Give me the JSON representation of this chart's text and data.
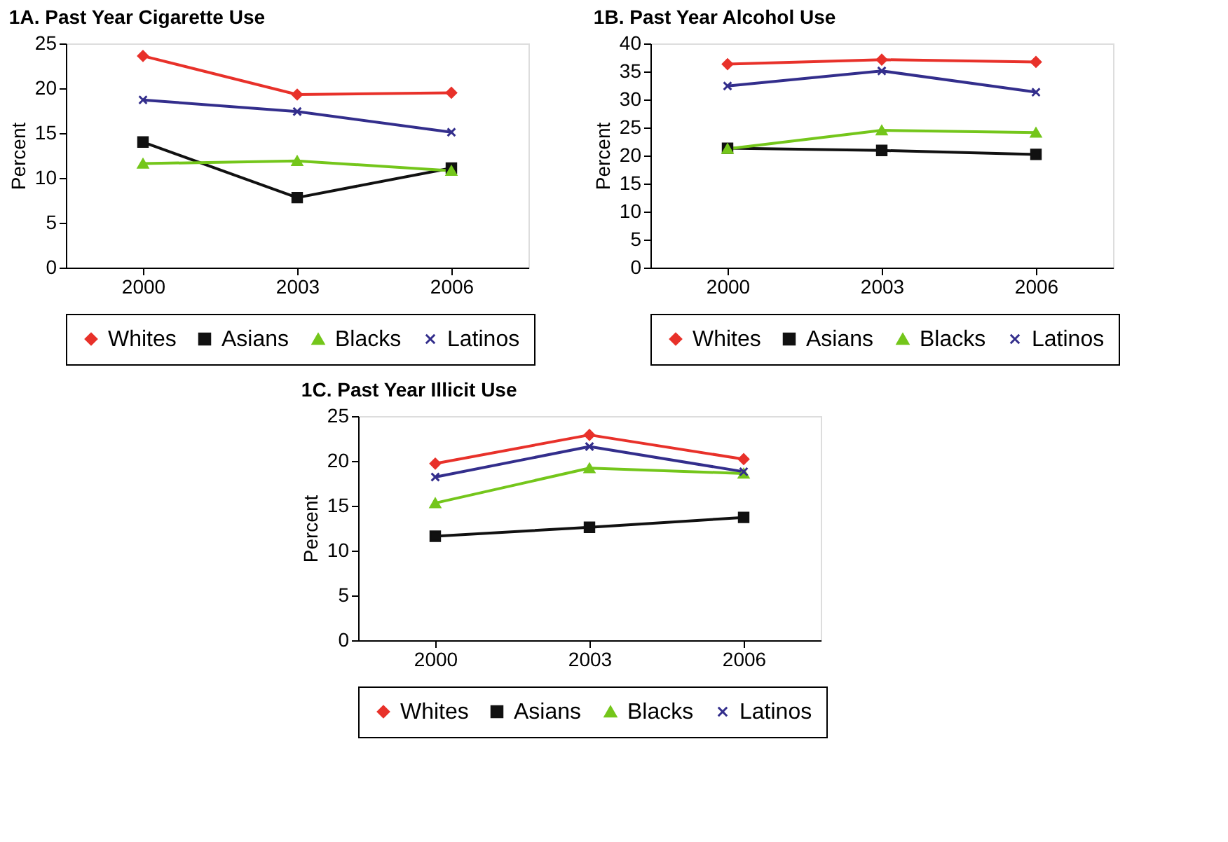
{
  "chart_data": [
    {
      "type": "line",
      "title": "1A. Past Year Cigarette Use",
      "ylabel": "Percent",
      "categories": [
        "2000",
        "2003",
        "2006"
      ],
      "ylim": [
        0,
        25
      ],
      "yticks": [
        0,
        5,
        10,
        15,
        20,
        25
      ],
      "grid": false,
      "legend": "bottom",
      "line_style": "solid",
      "series": [
        {
          "name": "Whites",
          "color": "#e8312a",
          "marker": "diamond",
          "values": [
            23.6,
            19.3,
            19.5
          ]
        },
        {
          "name": "Asians",
          "color": "#111111",
          "marker": "square",
          "values": [
            14.0,
            7.8,
            11.1
          ]
        },
        {
          "name": "Blacks",
          "color": "#74c61b",
          "marker": "triangle",
          "values": [
            11.6,
            11.9,
            10.8
          ]
        },
        {
          "name": "Latinos",
          "color": "#332e8c",
          "marker": "cross",
          "values": [
            18.7,
            17.4,
            15.1
          ]
        }
      ]
    },
    {
      "type": "line",
      "title": "1B. Past Year Alcohol Use",
      "ylabel": "Percent",
      "categories": [
        "2000",
        "2003",
        "2006"
      ],
      "ylim": [
        0,
        40
      ],
      "yticks": [
        0,
        5,
        10,
        15,
        20,
        25,
        30,
        35,
        40
      ],
      "grid": false,
      "legend": "bottom",
      "line_style": "solid",
      "series": [
        {
          "name": "Whites",
          "color": "#e8312a",
          "marker": "diamond",
          "values": [
            36.3,
            37.1,
            36.7
          ]
        },
        {
          "name": "Asians",
          "color": "#111111",
          "marker": "square",
          "values": [
            21.3,
            20.9,
            20.2
          ]
        },
        {
          "name": "Blacks",
          "color": "#74c61b",
          "marker": "triangle",
          "values": [
            21.2,
            24.5,
            24.1
          ]
        },
        {
          "name": "Latinos",
          "color": "#332e8c",
          "marker": "cross",
          "values": [
            32.4,
            35.1,
            31.3
          ]
        }
      ]
    },
    {
      "type": "line",
      "title": "1C. Past Year Illicit Use",
      "ylabel": "Percent",
      "categories": [
        "2000",
        "2003",
        "2006"
      ],
      "ylim": [
        0,
        25
      ],
      "yticks": [
        0,
        5,
        10,
        15,
        20,
        25
      ],
      "grid": false,
      "legend": "bottom",
      "line_style": "solid",
      "series": [
        {
          "name": "Whites",
          "color": "#e8312a",
          "marker": "diamond",
          "values": [
            19.7,
            22.9,
            20.2
          ]
        },
        {
          "name": "Asians",
          "color": "#111111",
          "marker": "square",
          "values": [
            11.6,
            12.6,
            13.7
          ]
        },
        {
          "name": "Blacks",
          "color": "#74c61b",
          "marker": "triangle",
          "values": [
            15.3,
            19.2,
            18.6
          ]
        },
        {
          "name": "Latinos",
          "color": "#332e8c",
          "marker": "cross",
          "values": [
            18.2,
            21.6,
            18.8
          ]
        }
      ]
    }
  ]
}
